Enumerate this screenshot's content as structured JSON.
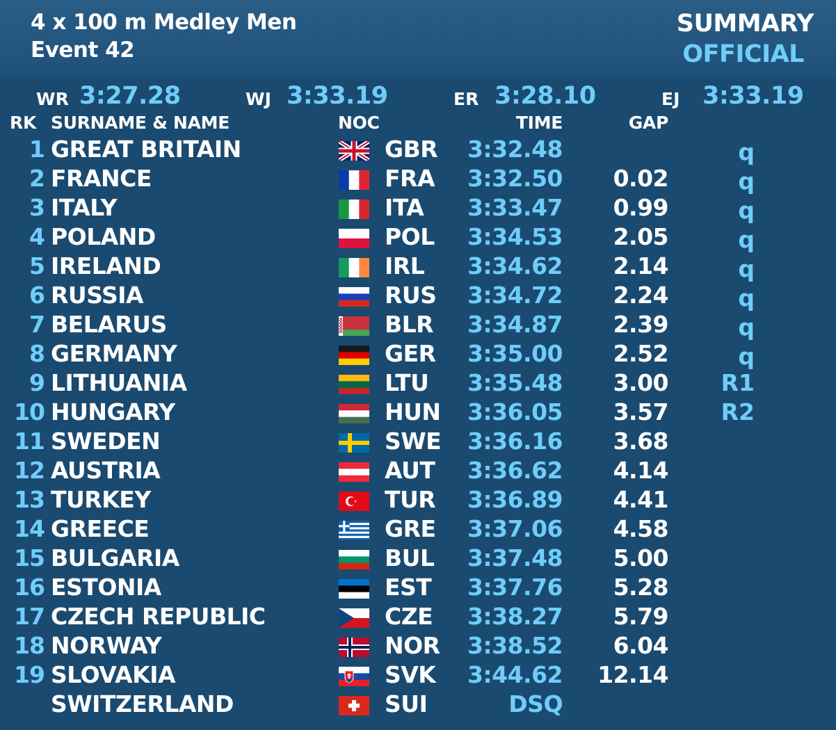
{
  "header": {
    "title": "4 x 100 m Medley Men",
    "event": "Event 42",
    "summary": "SUMMARY",
    "status": "OFFICIAL"
  },
  "records": {
    "wr_label": "WR",
    "wr_value": "3:27.28",
    "wj_label": "WJ",
    "wj_value": "3:33.19",
    "er_label": "ER",
    "er_value": "3:28.10",
    "ej_label": "EJ",
    "ej_value": "3:33.19"
  },
  "columns": {
    "rk": "RK",
    "name": "SURNAME & NAME",
    "noc": "NOC",
    "time": "TIME",
    "gap": "GAP"
  },
  "colors": {
    "background": "#1b4a70",
    "accent": "#6fcdfa",
    "text": "#ffffff"
  },
  "rows": [
    {
      "rk": "1",
      "name": "GREAT BRITAIN",
      "flag": "gbr-flag-icon",
      "noc": "GBR",
      "time": "3:32.48",
      "gap": "",
      "q": "q"
    },
    {
      "rk": "2",
      "name": "FRANCE",
      "flag": "fra-flag-icon",
      "noc": "FRA",
      "time": "3:32.50",
      "gap": "0.02",
      "q": "q"
    },
    {
      "rk": "3",
      "name": "ITALY",
      "flag": "ita-flag-icon",
      "noc": "ITA",
      "time": "3:33.47",
      "gap": "0.99",
      "q": "q"
    },
    {
      "rk": "4",
      "name": "POLAND",
      "flag": "pol-flag-icon",
      "noc": "POL",
      "time": "3:34.53",
      "gap": "2.05",
      "q": "q"
    },
    {
      "rk": "5",
      "name": "IRELAND",
      "flag": "irl-flag-icon",
      "noc": "IRL",
      "time": "3:34.62",
      "gap": "2.14",
      "q": "q"
    },
    {
      "rk": "6",
      "name": "RUSSIA",
      "flag": "rus-flag-icon",
      "noc": "RUS",
      "time": "3:34.72",
      "gap": "2.24",
      "q": "q"
    },
    {
      "rk": "7",
      "name": "BELARUS",
      "flag": "blr-flag-icon",
      "noc": "BLR",
      "time": "3:34.87",
      "gap": "2.39",
      "q": "q"
    },
    {
      "rk": "8",
      "name": "GERMANY",
      "flag": "ger-flag-icon",
      "noc": "GER",
      "time": "3:35.00",
      "gap": "2.52",
      "q": "q"
    },
    {
      "rk": "9",
      "name": "LITHUANIA",
      "flag": "ltu-flag-icon",
      "noc": "LTU",
      "time": "3:35.48",
      "gap": "3.00",
      "q": "R1"
    },
    {
      "rk": "10",
      "name": "HUNGARY",
      "flag": "hun-flag-icon",
      "noc": "HUN",
      "time": "3:36.05",
      "gap": "3.57",
      "q": "R2"
    },
    {
      "rk": "11",
      "name": "SWEDEN",
      "flag": "swe-flag-icon",
      "noc": "SWE",
      "time": "3:36.16",
      "gap": "3.68",
      "q": ""
    },
    {
      "rk": "12",
      "name": "AUSTRIA",
      "flag": "aut-flag-icon",
      "noc": "AUT",
      "time": "3:36.62",
      "gap": "4.14",
      "q": ""
    },
    {
      "rk": "13",
      "name": "TURKEY",
      "flag": "tur-flag-icon",
      "noc": "TUR",
      "time": "3:36.89",
      "gap": "4.41",
      "q": ""
    },
    {
      "rk": "14",
      "name": "GREECE",
      "flag": "gre-flag-icon",
      "noc": "GRE",
      "time": "3:37.06",
      "gap": "4.58",
      "q": ""
    },
    {
      "rk": "15",
      "name": "BULGARIA",
      "flag": "bul-flag-icon",
      "noc": "BUL",
      "time": "3:37.48",
      "gap": "5.00",
      "q": ""
    },
    {
      "rk": "16",
      "name": "ESTONIA",
      "flag": "est-flag-icon",
      "noc": "EST",
      "time": "3:37.76",
      "gap": "5.28",
      "q": ""
    },
    {
      "rk": "17",
      "name": "CZECH REPUBLIC",
      "flag": "cze-flag-icon",
      "noc": "CZE",
      "time": "3:38.27",
      "gap": "5.79",
      "q": ""
    },
    {
      "rk": "18",
      "name": "NORWAY",
      "flag": "nor-flag-icon",
      "noc": "NOR",
      "time": "3:38.52",
      "gap": "6.04",
      "q": ""
    },
    {
      "rk": "19",
      "name": "SLOVAKIA",
      "flag": "svk-flag-icon",
      "noc": "SVK",
      "time": "3:44.62",
      "gap": "12.14",
      "q": ""
    },
    {
      "rk": "",
      "name": "SWITZERLAND",
      "flag": "sui-flag-icon",
      "noc": "SUI",
      "time": "DSQ",
      "gap": "",
      "q": ""
    }
  ]
}
